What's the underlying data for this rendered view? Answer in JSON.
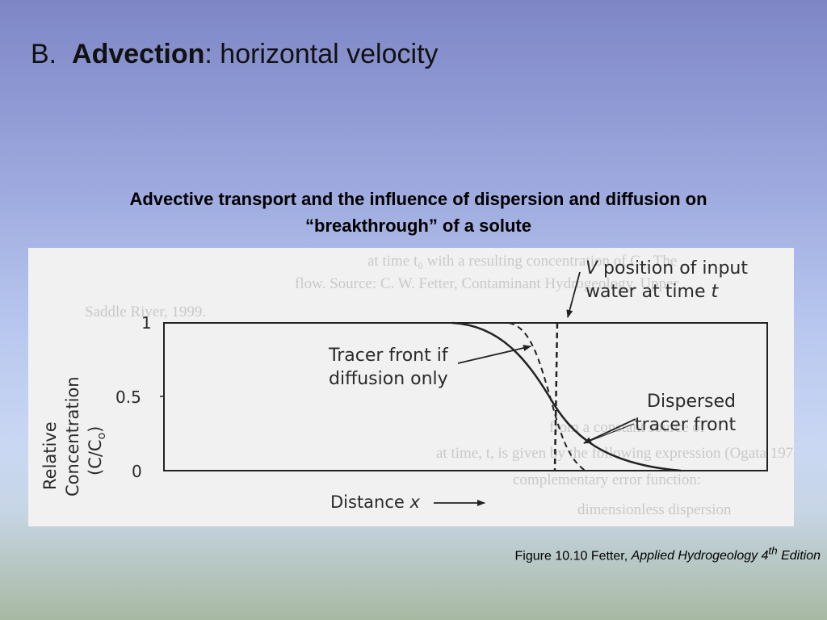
{
  "slide": {
    "title_prefix": "B.",
    "title_bold": "Advection",
    "title_rest": ":  horizontal velocity",
    "subtitle_line1": "Advective transport and the influence of dispersion and diffusion on",
    "subtitle_line2": "“breakthrough” of a solute"
  },
  "figure": {
    "y_axis_label_line1": "Relative",
    "y_axis_label_line2": "Concentration",
    "y_axis_label_line3_prefix": "(C/C",
    "y_axis_label_line3_sub": "o",
    "y_axis_label_line3_suffix": ")",
    "tick_1": "1",
    "tick_05": "0.5",
    "tick_0": "0",
    "x_axis_label_prefix": "Distance ",
    "x_axis_label_var": "x",
    "annotation_v_var": "V",
    "annotation_v_line1_rest": " position of input",
    "annotation_v_line2_prefix": "water at time ",
    "annotation_v_line2_var": "t",
    "annotation_tracer_line1": "Tracer front if",
    "annotation_tracer_line2": "diffusion only",
    "annotation_dispersed_line1": "Dispersed",
    "annotation_dispersed_line2": "tracer front"
  },
  "caption": {
    "prefix": "Figure 10.10 Fetter, ",
    "italic_main": "Applied Hydrogeology 4",
    "italic_sup": "th",
    "italic_end": " Edition"
  },
  "colors": {
    "figure_background": "#f1f1f1",
    "curve_ink": "#222222"
  }
}
